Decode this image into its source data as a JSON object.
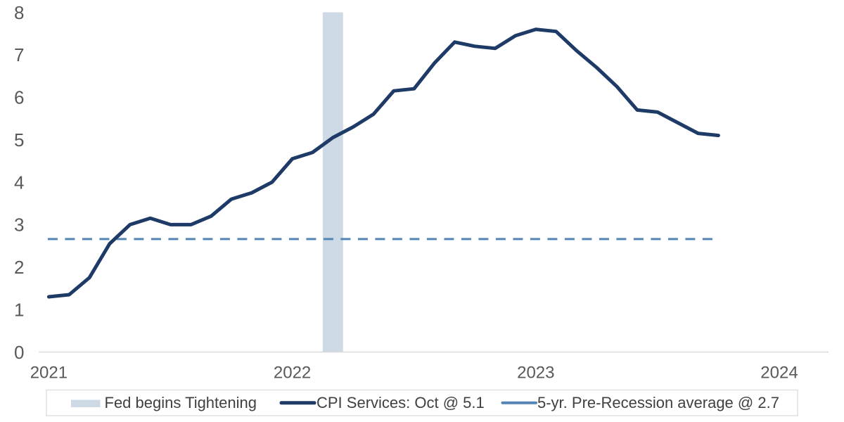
{
  "chart_data": {
    "type": "line",
    "title": "",
    "xlabel": "",
    "ylabel": "",
    "x_unit": "month",
    "x": [
      "2021-01",
      "2021-02",
      "2021-03",
      "2021-04",
      "2021-05",
      "2021-06",
      "2021-07",
      "2021-08",
      "2021-09",
      "2021-10",
      "2021-11",
      "2021-12",
      "2022-01",
      "2022-02",
      "2022-03",
      "2022-04",
      "2022-05",
      "2022-06",
      "2022-07",
      "2022-08",
      "2022-09",
      "2022-10",
      "2022-11",
      "2022-12",
      "2023-01",
      "2023-02",
      "2023-03",
      "2023-04",
      "2023-05",
      "2023-06",
      "2023-07",
      "2023-08",
      "2023-09",
      "2023-10"
    ],
    "series": [
      {
        "name": "CPI Services: Oct @ 5.1",
        "type": "line",
        "color": "#1E3A67",
        "line_width": 5,
        "values": [
          1.3,
          1.35,
          1.75,
          2.55,
          3.0,
          3.15,
          3.0,
          3.0,
          3.2,
          3.6,
          3.75,
          4.0,
          4.55,
          4.7,
          5.05,
          5.3,
          5.6,
          6.15,
          6.2,
          6.8,
          7.3,
          7.2,
          7.15,
          7.45,
          7.6,
          7.55,
          7.1,
          6.7,
          6.25,
          5.7,
          5.65,
          5.4,
          5.15,
          5.1
        ]
      }
    ],
    "reference_line": {
      "name": "5-yr. Pre-Recession average @ 2.7",
      "value": 2.66,
      "label_value": "2.7",
      "color": "#5585B5",
      "style": "dashed",
      "line_width": 3
    },
    "shaded_band": {
      "name": "Fed begins Tightening",
      "x_center": "2022-03",
      "width_months": 1,
      "color": "#CDD9E4"
    },
    "y_axis": {
      "min": 0,
      "max": 8,
      "tick_interval": 1,
      "tick_labels": [
        "0",
        "1",
        "2",
        "3",
        "4",
        "5",
        "6",
        "7",
        "8"
      ]
    },
    "x_axis": {
      "tick_labels": [
        "2021",
        "2022",
        "2023",
        "2024"
      ],
      "axis_color": "#D9D9D9"
    },
    "grid": "off",
    "legend": {
      "position": "bottom",
      "border_color": "#D9D9D9",
      "items": [
        {
          "label": "Fed begins Tightening",
          "swatch": "filled-rect",
          "color": "#CDD9E4"
        },
        {
          "label": "CPI Services: Oct @ 5.1",
          "swatch": "thick-line",
          "color": "#1E3A67"
        },
        {
          "label": "5-yr. Pre-Recession average @ 2.7",
          "swatch": "line",
          "color": "#5585B5"
        }
      ]
    },
    "colors": {
      "background": "#FFFFFF",
      "tick_text": "#595959",
      "legend_text": "#404040"
    }
  }
}
